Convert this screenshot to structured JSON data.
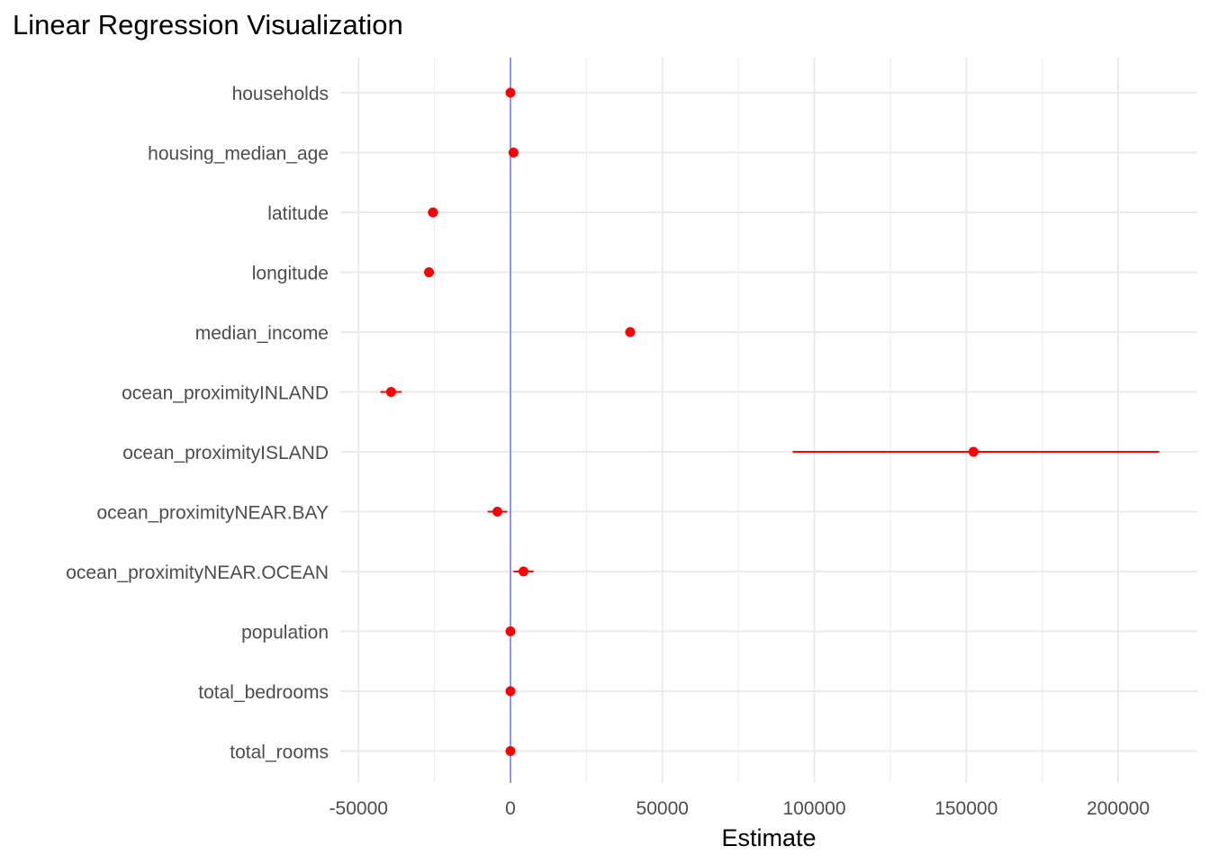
{
  "chart_data": {
    "type": "scatter",
    "title": "Linear Regression Visualization",
    "xlabel": "Estimate",
    "ylabel": "",
    "xlim": [
      -50000,
      225000
    ],
    "xticks": [
      -50000,
      0,
      50000,
      100000,
      150000,
      200000
    ],
    "x_tick_labels": [
      "-50000",
      "0",
      "50000",
      "100000",
      "150000",
      "200000"
    ],
    "grid": true,
    "reference_line": {
      "x": 0,
      "color": "#0000ff"
    },
    "point_color": "#ff0000",
    "interval_color": "#ff0000",
    "categories": [
      "households",
      "housing_median_age",
      "latitude",
      "longitude",
      "median_income",
      "ocean_proximityINLAND",
      "ocean_proximityISLAND",
      "ocean_proximityNEAR.BAY",
      "ocean_proximityNEAR.OCEAN",
      "population",
      "total_bedrooms",
      "total_rooms"
    ],
    "estimates": [
      0,
      1000,
      -25500,
      -26800,
      39400,
      -39300,
      152400,
      -4300,
      4300,
      0,
      0,
      0
    ],
    "lower": [
      -500,
      600,
      -27200,
      -28500,
      38500,
      -42800,
      92900,
      -7500,
      1000,
      -500,
      -500,
      -500
    ],
    "upper": [
      500,
      1400,
      -23800,
      -25100,
      40300,
      -35800,
      213500,
      -1100,
      7600,
      500,
      500,
      500
    ]
  }
}
